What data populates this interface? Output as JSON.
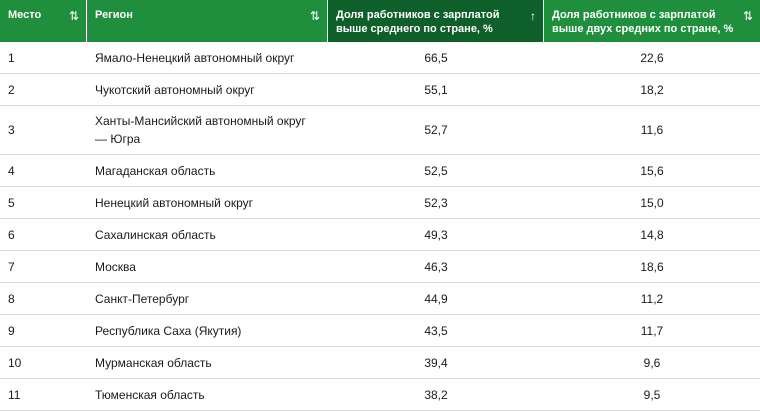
{
  "table": {
    "headers": [
      {
        "label": "Место",
        "sort_icon": "⇅"
      },
      {
        "label": "Регион",
        "sort_icon": "⇅"
      },
      {
        "label": "Доля работников с зарплатой выше среднего по стране, %",
        "sort_icon": "↑"
      },
      {
        "label": "Доля работников с зарплатой выше двух средних по стране, %",
        "sort_icon": "⇅"
      }
    ],
    "rows": [
      {
        "rank": "1",
        "region": "Ямало-Ненецкий автономный округ",
        "above_avg": "66,5",
        "above_two_avg": "22,6"
      },
      {
        "rank": "2",
        "region": "Чукотский автономный округ",
        "above_avg": "55,1",
        "above_two_avg": "18,2"
      },
      {
        "rank": "3",
        "region": "Ханты-Мансийский автономный округ — Югра",
        "above_avg": "52,7",
        "above_two_avg": "11,6"
      },
      {
        "rank": "4",
        "region": "Магаданская область",
        "above_avg": "52,5",
        "above_two_avg": "15,6"
      },
      {
        "rank": "5",
        "region": "Ненецкий автономный округ",
        "above_avg": "52,3",
        "above_two_avg": "15,0"
      },
      {
        "rank": "6",
        "region": "Сахалинская область",
        "above_avg": "49,3",
        "above_two_avg": "14,8"
      },
      {
        "rank": "7",
        "region": "Москва",
        "above_avg": "46,3",
        "above_two_avg": "18,6"
      },
      {
        "rank": "8",
        "region": "Санкт-Петербург",
        "above_avg": "44,9",
        "above_two_avg": "11,2"
      },
      {
        "rank": "9",
        "region": "Республика Саха (Якутия)",
        "above_avg": "43,5",
        "above_two_avg": "11,7"
      },
      {
        "rank": "10",
        "region": "Мурманская область",
        "above_avg": "39,4",
        "above_two_avg": "9,6"
      },
      {
        "rank": "11",
        "region": "Тюменская область",
        "above_avg": "38,2",
        "above_two_avg": "9,5"
      }
    ]
  }
}
